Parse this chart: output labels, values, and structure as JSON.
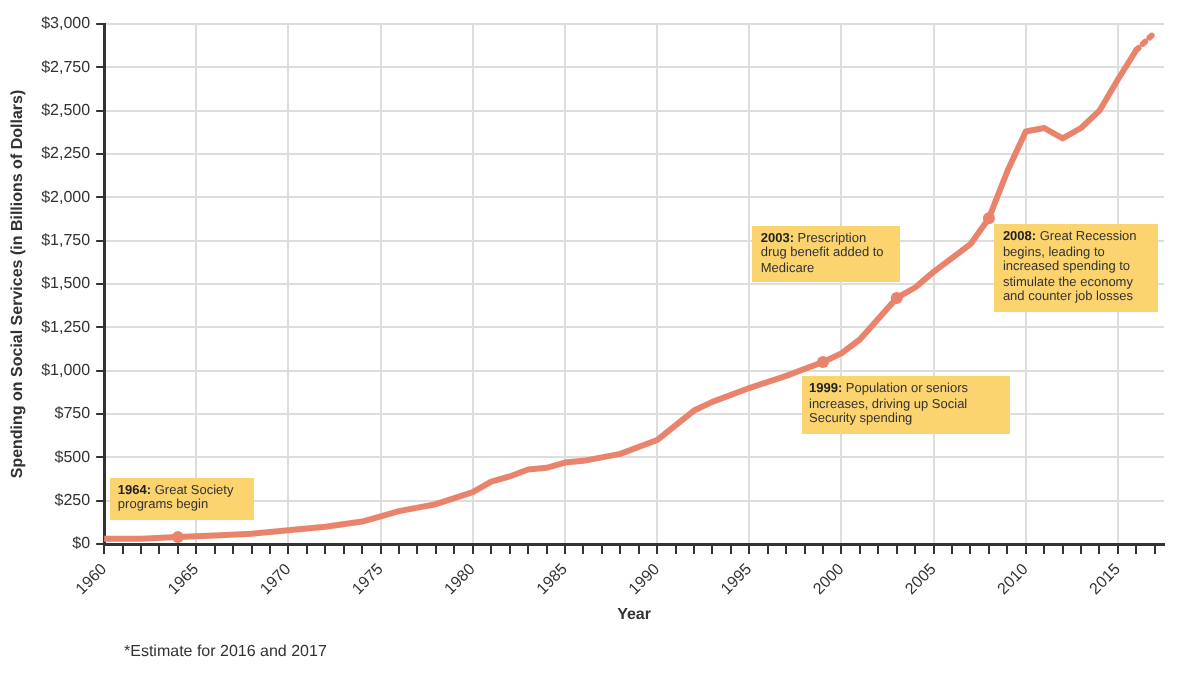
{
  "chart_data": {
    "type": "line",
    "xlabel": "Year",
    "ylabel": "Spending on Social Services (in Billions of Dollars)",
    "series": [
      {
        "color": "#e9836b",
        "line_style": "solid",
        "x": [
          1960,
          1962,
          1964,
          1966,
          1968,
          1970,
          1972,
          1974,
          1976,
          1978,
          1980,
          1981,
          1982,
          1983,
          1984,
          1985,
          1986,
          1988,
          1990,
          1992,
          1993,
          1995,
          1997,
          1999,
          2000,
          2001,
          2002,
          2003,
          2004,
          2005,
          2007,
          2008,
          2009,
          2010,
          2011,
          2012,
          2013,
          2014,
          2015,
          2016
        ],
        "values": [
          30,
          30,
          40,
          50,
          60,
          80,
          100,
          130,
          190,
          230,
          300,
          360,
          390,
          430,
          440,
          470,
          480,
          520,
          600,
          770,
          820,
          900,
          970,
          1050,
          1100,
          1180,
          1300,
          1420,
          1480,
          1570,
          1730,
          1880,
          2150,
          2380,
          2400,
          2340,
          2400,
          2500,
          2680,
          2850
        ]
      },
      {
        "color": "#e9836b",
        "line_style": "dotted",
        "x": [
          2016,
          2017
        ],
        "values": [
          2850,
          2950
        ]
      }
    ],
    "marker": "none",
    "xlim": [
      1960,
      2017.5
    ],
    "xticks": [
      1960,
      {
        "value": 1961,
        "label": null
      },
      {
        "value": 1962,
        "label": null
      },
      {
        "value": 1963,
        "label": null
      },
      {
        "value": 1964,
        "label": null
      },
      1965,
      {
        "value": 1966,
        "label": null
      },
      {
        "value": 1967,
        "label": null
      },
      {
        "value": 1968,
        "label": null
      },
      {
        "value": 1969,
        "label": null
      },
      1970,
      {
        "value": 1971,
        "label": null
      },
      {
        "value": 1972,
        "label": null
      },
      {
        "value": 1973,
        "label": null
      },
      {
        "value": 1974,
        "label": null
      },
      1975,
      {
        "value": 1976,
        "label": null
      },
      {
        "value": 1977,
        "label": null
      },
      {
        "value": 1978,
        "label": null
      },
      {
        "value": 1979,
        "label": null
      },
      1980,
      {
        "value": 1981,
        "label": null
      },
      {
        "value": 1982,
        "label": null
      },
      {
        "value": 1983,
        "label": null
      },
      {
        "value": 1984,
        "label": null
      },
      1985,
      {
        "value": 1986,
        "label": null
      },
      {
        "value": 1987,
        "label": null
      },
      {
        "value": 1988,
        "label": null
      },
      {
        "value": 1989,
        "label": null
      },
      1990,
      {
        "value": 1991,
        "label": null
      },
      {
        "value": 1992,
        "label": null
      },
      {
        "value": 1993,
        "label": null
      },
      {
        "value": 1994,
        "label": null
      },
      1995,
      {
        "value": 1996,
        "label": null
      },
      {
        "value": 1997,
        "label": null
      },
      {
        "value": 1998,
        "label": null
      },
      {
        "value": 1999,
        "label": null
      },
      2000,
      {
        "value": 2001,
        "label": null
      },
      {
        "value": 2002,
        "label": null
      },
      {
        "value": 2003,
        "label": null
      },
      {
        "value": 2004,
        "label": null
      },
      2005,
      {
        "value": 2006,
        "label": null
      },
      {
        "value": 2007,
        "label": null
      },
      {
        "value": 2008,
        "label": null
      },
      {
        "value": 2009,
        "label": null
      },
      2010,
      {
        "value": 2011,
        "label": null
      },
      {
        "value": 2012,
        "label": null
      },
      {
        "value": 2013,
        "label": null
      },
      {
        "value": 2014,
        "label": null
      },
      2015,
      {
        "value": 2016,
        "label": null
      },
      {
        "value": 2017,
        "label": null
      }
    ],
    "ylim": [
      0,
      3000
    ],
    "yticks": [
      {
        "value": 0,
        "label": "$0"
      },
      {
        "value": 250,
        "label": "$250"
      },
      {
        "value": 500,
        "label": "$500"
      },
      {
        "value": 750,
        "label": "$750"
      },
      {
        "value": 1000,
        "label": "$1,000"
      },
      {
        "value": 1250,
        "label": "$1,250"
      },
      {
        "value": 1500,
        "label": "$1,500"
      },
      {
        "value": 1750,
        "label": "$1,750"
      },
      {
        "value": 2000,
        "label": "$2,000"
      },
      {
        "value": 2250,
        "label": "$2,250"
      },
      {
        "value": 2500,
        "label": "$2,500"
      },
      {
        "value": 2750,
        "label": "$2,750"
      },
      {
        "value": 3000,
        "label": "$3,000"
      }
    ],
    "grid": true,
    "legend": false,
    "annotations": [
      {
        "text": "1964: Great Society programs begin",
        "x": 1964,
        "y": 40
      },
      {
        "text": "1999: Population or seniors increases, driving up Social Security spending",
        "x": 1999,
        "y": 1050
      },
      {
        "text": "2003: Prescription drug benefit added to Medicare",
        "x": 2003,
        "y": 1420
      },
      {
        "text": "2008: Great Recession begins, leading to increased spending to stimulate the economy and counter job losses",
        "x": 2008,
        "y": 1880
      },
      "*Estimate for 2016 and 2017"
    ]
  }
}
